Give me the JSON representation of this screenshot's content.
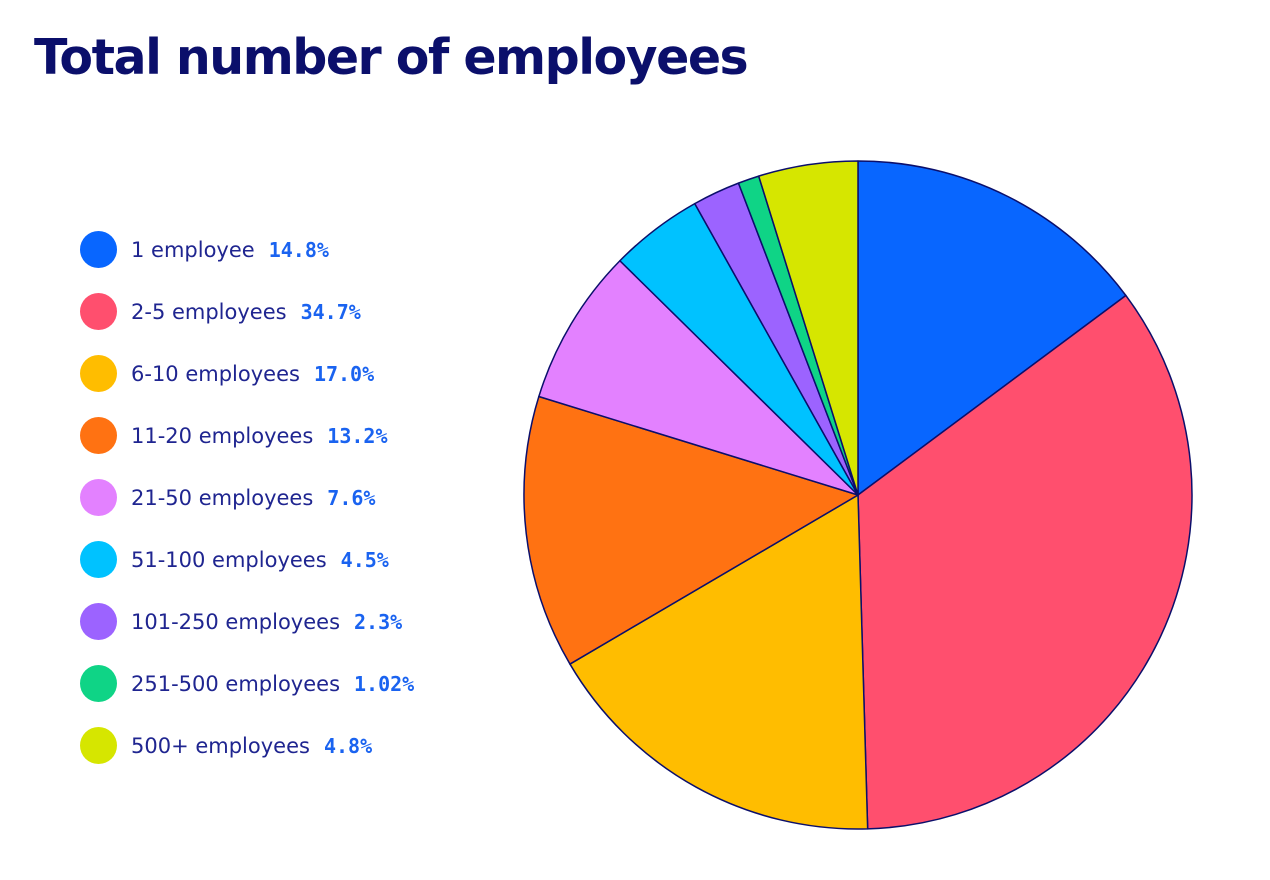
{
  "chart_data": {
    "type": "pie",
    "title": "Total number of employees",
    "slices": [
      {
        "label": "1 employee",
        "value_text": "14.8%",
        "value": 14.8,
        "color": "#0866ff"
      },
      {
        "label": "2-5 employees",
        "value_text": "34.7%",
        "value": 34.7,
        "color": "#ff4f6e"
      },
      {
        "label": "6-10 employees",
        "value_text": "17.0%",
        "value": 17.0,
        "color": "#ffbd00"
      },
      {
        "label": "11-20 employees",
        "value_text": "13.2%",
        "value": 13.2,
        "color": "#ff7212"
      },
      {
        "label": "21-50 employees",
        "value_text": "7.6%",
        "value": 7.6,
        "color": "#e381ff"
      },
      {
        "label": "51-100 employees",
        "value_text": "4.5%",
        "value": 4.5,
        "color": "#00c2ff"
      },
      {
        "label": "101-250 employees",
        "value_text": "2.3%",
        "value": 2.3,
        "color": "#9c63ff"
      },
      {
        "label": "251-500 employees",
        "value_text": "1.02%",
        "value": 1.02,
        "color": "#0fd486"
      },
      {
        "label": "500+ employees",
        "value_text": "4.8%",
        "value": 4.8,
        "color": "#d6e600"
      }
    ],
    "legend_position": "left",
    "outline_color": "#0b0f6b"
  }
}
